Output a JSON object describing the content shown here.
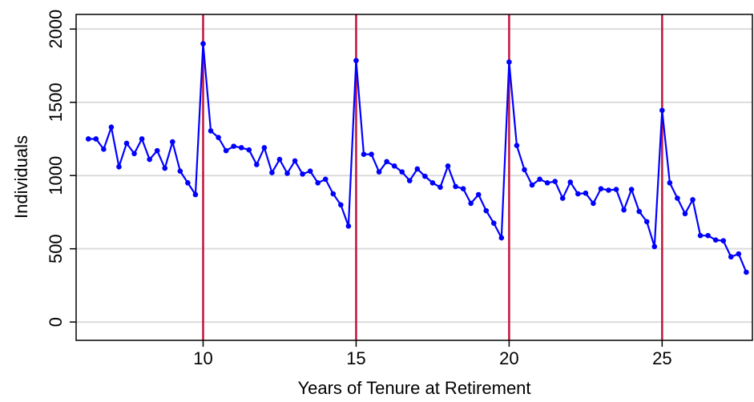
{
  "chart_data": {
    "type": "line",
    "x_label": "Years of Tenure at Retirement",
    "y_label": "Individuals",
    "x": [
      6.25,
      6.5,
      6.75,
      7,
      7.25,
      7.5,
      7.75,
      8,
      8.25,
      8.5,
      8.75,
      9,
      9.25,
      9.5,
      9.75,
      10,
      10.25,
      10.5,
      10.75,
      11,
      11.25,
      11.5,
      11.75,
      12,
      12.25,
      12.5,
      12.75,
      13,
      13.25,
      13.5,
      13.75,
      14,
      14.25,
      14.5,
      14.75,
      15,
      15.25,
      15.5,
      15.75,
      16,
      16.25,
      16.5,
      16.75,
      17,
      17.25,
      17.5,
      17.75,
      18,
      18.25,
      18.5,
      18.75,
      19,
      19.25,
      19.5,
      19.75,
      20,
      20.25,
      20.5,
      20.75,
      21,
      21.25,
      21.5,
      21.75,
      22,
      22.25,
      22.5,
      22.75,
      23,
      23.25,
      23.5,
      23.75,
      24,
      24.25,
      24.5,
      24.75,
      25,
      25.25,
      25.5,
      25.75,
      26,
      26.25,
      26.5,
      26.75,
      27,
      27.25,
      27.5,
      27.75
    ],
    "values": [
      1250,
      1250,
      1180,
      1330,
      1060,
      1220,
      1150,
      1250,
      1110,
      1170,
      1050,
      1230,
      1030,
      950,
      870,
      1900,
      1305,
      1260,
      1170,
      1200,
      1190,
      1175,
      1075,
      1190,
      1020,
      1110,
      1015,
      1100,
      1010,
      1030,
      950,
      975,
      875,
      800,
      655,
      1785,
      1145,
      1145,
      1025,
      1095,
      1065,
      1025,
      965,
      1045,
      995,
      950,
      920,
      1065,
      925,
      910,
      810,
      870,
      760,
      675,
      575,
      1775,
      1205,
      1040,
      935,
      975,
      950,
      960,
      845,
      955,
      875,
      880,
      810,
      910,
      900,
      905,
      765,
      905,
      755,
      685,
      515,
      1445,
      950,
      845,
      740,
      835,
      590,
      590,
      560,
      555,
      445,
      465,
      340
    ],
    "color": "#0000ff",
    "vlines": [
      10,
      15,
      20,
      25
    ],
    "vline_color": "#c0143c",
    "xlim": [
      5.85,
      27.95
    ],
    "xticks": [
      10,
      15,
      20,
      25
    ],
    "ylim": [
      -125,
      2100
    ],
    "yticks": [
      0,
      500,
      1000,
      1500,
      2000
    ],
    "grid": true
  }
}
